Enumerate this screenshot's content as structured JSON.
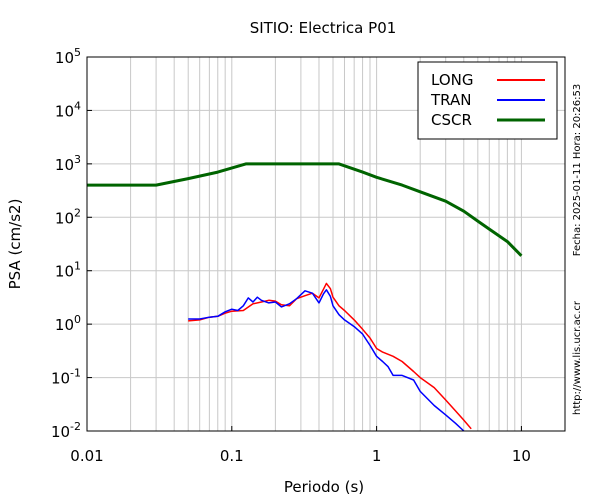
{
  "chart_data": {
    "type": "line",
    "title": "SITIO: Electrica P01",
    "xlabel": "Periodo (s)",
    "ylabel": "PSA (cm/s2)",
    "xscale": "log",
    "yscale": "log",
    "xlim": [
      0.01,
      20
    ],
    "ylim": [
      0.01,
      100000
    ],
    "x_ticks": [
      {
        "value": 0.01,
        "label": "0.01"
      },
      {
        "value": 0.1,
        "label": "0.1"
      },
      {
        "value": 1,
        "label": "1"
      },
      {
        "value": 10,
        "label": "10"
      }
    ],
    "y_ticks": [
      {
        "value": 0.01,
        "base": "10",
        "exp": "-2"
      },
      {
        "value": 0.1,
        "base": "10",
        "exp": "-1"
      },
      {
        "value": 1,
        "base": "10",
        "exp": "0"
      },
      {
        "value": 10,
        "base": "10",
        "exp": "1"
      },
      {
        "value": 100,
        "base": "10",
        "exp": "2"
      },
      {
        "value": 1000,
        "base": "10",
        "exp": "3"
      },
      {
        "value": 10000,
        "base": "10",
        "exp": "4"
      },
      {
        "value": 100000,
        "base": "10",
        "exp": "5"
      }
    ],
    "grid": true,
    "legend_position": "top-right",
    "side_text_top": "Fecha: 2025-01-11 Hora: 20:26:53",
    "side_text_bottom": "http://www.lis.ucr.ac.cr",
    "series": [
      {
        "name": "LONG",
        "color": "#ff0000",
        "x": [
          0.05,
          0.06,
          0.07,
          0.08,
          0.09,
          0.1,
          0.12,
          0.14,
          0.16,
          0.18,
          0.2,
          0.22,
          0.25,
          0.28,
          0.32,
          0.36,
          0.4,
          0.43,
          0.45,
          0.48,
          0.5,
          0.55,
          0.6,
          0.7,
          0.8,
          0.9,
          1.0,
          1.1,
          1.3,
          1.5,
          1.8,
          2.0,
          2.5,
          3.0,
          3.5,
          4.0,
          4.5
        ],
        "y": [
          1.15,
          1.2,
          1.35,
          1.4,
          1.6,
          1.75,
          1.8,
          2.4,
          2.6,
          2.8,
          2.7,
          2.3,
          2.2,
          3.0,
          3.4,
          3.8,
          3.1,
          4.5,
          5.8,
          4.6,
          3.2,
          2.2,
          1.8,
          1.2,
          0.8,
          0.55,
          0.35,
          0.3,
          0.25,
          0.2,
          0.13,
          0.1,
          0.065,
          0.038,
          0.024,
          0.016,
          0.011
        ]
      },
      {
        "name": "TRAN",
        "color": "#0000ff",
        "x": [
          0.05,
          0.06,
          0.07,
          0.08,
          0.09,
          0.1,
          0.11,
          0.12,
          0.13,
          0.14,
          0.15,
          0.16,
          0.18,
          0.2,
          0.22,
          0.25,
          0.28,
          0.32,
          0.36,
          0.4,
          0.43,
          0.45,
          0.48,
          0.5,
          0.55,
          0.6,
          0.7,
          0.8,
          0.9,
          1.0,
          1.1,
          1.2,
          1.3,
          1.5,
          1.8,
          2.0,
          2.5,
          3.0,
          3.5,
          4.0
        ],
        "y": [
          1.25,
          1.25,
          1.35,
          1.4,
          1.7,
          1.9,
          1.8,
          2.2,
          3.1,
          2.6,
          3.2,
          2.8,
          2.5,
          2.6,
          2.1,
          2.4,
          3.0,
          4.2,
          3.8,
          2.5,
          3.7,
          4.4,
          3.3,
          2.2,
          1.5,
          1.2,
          0.9,
          0.65,
          0.4,
          0.25,
          0.2,
          0.16,
          0.11,
          0.11,
          0.09,
          0.055,
          0.03,
          0.02,
          0.014,
          0.01
        ]
      },
      {
        "name": "CSCR",
        "color": "#006400",
        "x": [
          0.01,
          0.03,
          0.05,
          0.08,
          0.125,
          0.2,
          0.3,
          0.55,
          0.8,
          1.0,
          1.5,
          2.0,
          3.0,
          4.0,
          5.0,
          6.0,
          8.0,
          10.0
        ],
        "y": [
          400,
          400,
          530,
          700,
          1000,
          1000,
          1000,
          1000,
          700,
          560,
          400,
          300,
          200,
          130,
          85,
          60,
          35,
          19
        ]
      }
    ]
  }
}
